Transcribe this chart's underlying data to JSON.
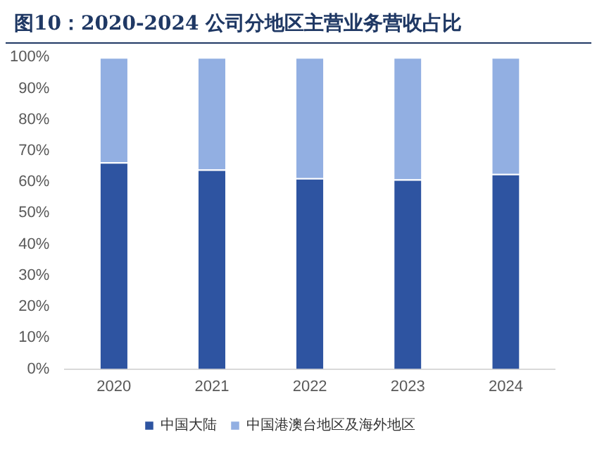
{
  "chart_data": {
    "type": "bar",
    "title": "图10：2020-2024 公司分地区主营业务营收占比",
    "categories": [
      "2020",
      "2021",
      "2022",
      "2023",
      "2024"
    ],
    "series": [
      {
        "name": "中国大陆",
        "color": "#2e54a1",
        "values": [
          66.3,
          64.0,
          61.2,
          60.8,
          62.6
        ]
      },
      {
        "name": "中国港澳台地区及海外地区",
        "color": "#92afe2",
        "values": [
          33.7,
          36.0,
          38.8,
          39.2,
          37.4
        ]
      }
    ],
    "stacked": true,
    "ylim": [
      0,
      100
    ],
    "yticks": [
      {
        "value": 0,
        "label": "0%"
      },
      {
        "value": 10,
        "label": "10%"
      },
      {
        "value": 20,
        "label": "20%"
      },
      {
        "value": 30,
        "label": "30%"
      },
      {
        "value": 40,
        "label": "40%"
      },
      {
        "value": 50,
        "label": "50%"
      },
      {
        "value": 60,
        "label": "60%"
      },
      {
        "value": 70,
        "label": "70%"
      },
      {
        "value": 80,
        "label": "80%"
      },
      {
        "value": 90,
        "label": "90%"
      },
      {
        "value": 100,
        "label": "100%"
      }
    ],
    "grid": false,
    "legend": "bottom"
  }
}
